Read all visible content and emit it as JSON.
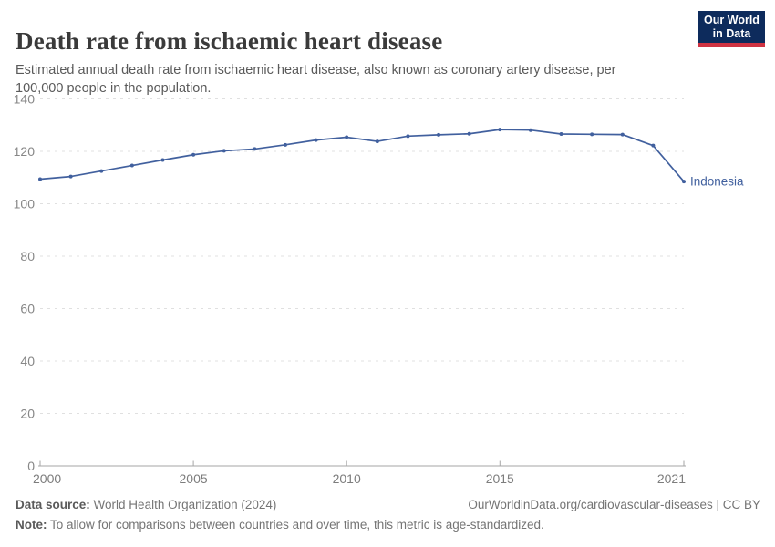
{
  "header": {
    "title": "Death rate from ischaemic heart disease",
    "subtitle": "Estimated annual death rate from ischaemic heart disease, also known as coronary artery disease, per 100,000 people in the population.",
    "logo": {
      "line1": "Our World",
      "line2": "in Data"
    }
  },
  "chart_data": {
    "type": "line",
    "title": "Death rate from ischaemic heart disease",
    "xlabel": "",
    "ylabel": "",
    "x": [
      2000,
      2001,
      2002,
      2003,
      2004,
      2005,
      2006,
      2007,
      2008,
      2009,
      2010,
      2011,
      2012,
      2013,
      2014,
      2015,
      2016,
      2017,
      2018,
      2019,
      2020,
      2021
    ],
    "series": [
      {
        "name": "Indonesia",
        "color": "#41609e",
        "values": [
          109.4,
          110.4,
          112.5,
          114.6,
          116.7,
          118.7,
          120.2,
          120.9,
          122.5,
          124.3,
          125.4,
          123.8,
          125.8,
          126.3,
          126.7,
          128.3,
          128.1,
          126.6,
          126.5,
          126.4,
          122.2,
          108.5
        ]
      }
    ],
    "ylim": [
      0,
      140
    ],
    "yticks": [
      0,
      20,
      40,
      60,
      80,
      100,
      120,
      140
    ],
    "xticks": [
      2000,
      2005,
      2010,
      2015,
      2021
    ],
    "grid": "horizontal-dashed",
    "legend_position": "end-of-line-label"
  },
  "footer": {
    "data_source_label": "Data source:",
    "data_source_value": "World Health Organization (2024)",
    "link": "OurWorldinData.org/cardiovascular-diseases | CC BY",
    "note_label": "Note:",
    "note_value": "To allow for comparisons between countries and over time, this metric is age-standardized."
  },
  "colors": {
    "line": "#41609e",
    "grid": "#e0e0e0",
    "axis": "#a6a6a6",
    "y_tick_label": "#878787",
    "x_tick_label": "#7d7d7d",
    "logo_navy": "#0d2b5c",
    "logo_red": "#cf3342",
    "title_text": "#3a3a3a",
    "subtitle_text": "#5a5a5a"
  }
}
